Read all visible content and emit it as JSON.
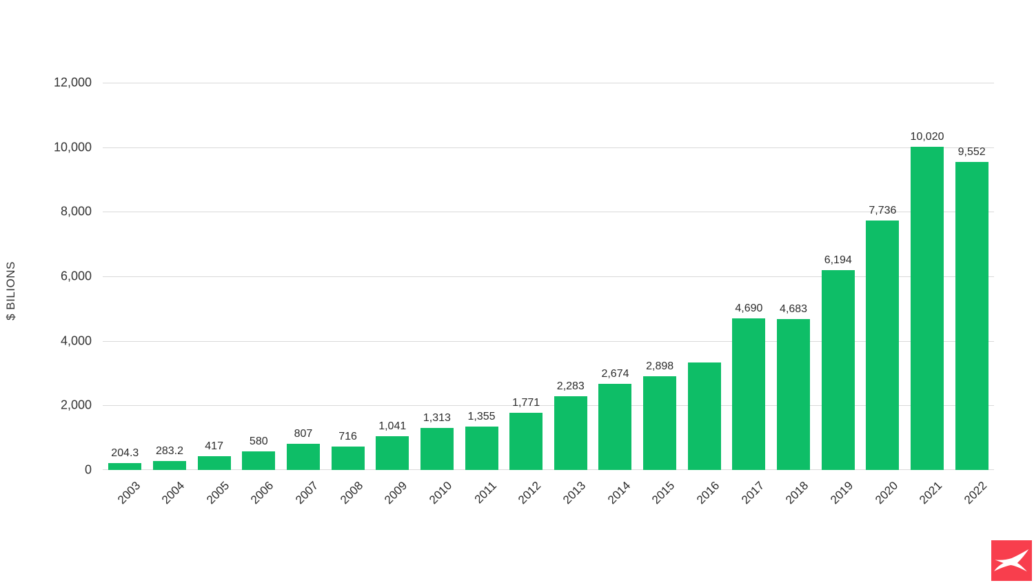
{
  "chart_data": {
    "type": "bar",
    "title": "",
    "ylabel": "$ BILIONS",
    "xlabel": "",
    "categories": [
      "2003",
      "2004",
      "2005",
      "2006",
      "2007",
      "2008",
      "2009",
      "2010",
      "2011",
      "2012",
      "2013",
      "2014",
      "2015",
      "2016",
      "2017",
      "2018",
      "2019",
      "2020",
      "2021",
      "2022"
    ],
    "values": [
      204.3,
      283.2,
      417,
      580,
      807,
      716,
      1041,
      1313,
      1355,
      1771,
      2283,
      2674,
      2898,
      3330,
      4690,
      4683,
      6194,
      7736,
      10020,
      9552
    ],
    "bar_labels": [
      "204.3",
      "283.2",
      "417",
      "580",
      "807",
      "716",
      "1,041",
      "1,313",
      "1,355",
      "1,771",
      "2,283",
      "2,674",
      "2,898",
      "",
      "4,690",
      "4,683",
      "6,194",
      "7,736",
      "10,020",
      "9,552"
    ],
    "ylim": [
      0,
      12000
    ],
    "yticks": [
      0,
      2000,
      4000,
      6000,
      8000,
      10000,
      12000
    ],
    "ytick_labels": [
      "0",
      "2,000",
      "4,000",
      "6,000",
      "8,000",
      "10,000",
      "12,000"
    ],
    "grid": true,
    "legend": "none",
    "colors": {
      "bar": "#0ebe67",
      "gridline": "#d9d9d9",
      "text": "#2f2f2f",
      "background": "#ffffff"
    }
  },
  "logo": {
    "name": "xtb-logo",
    "icon": "swallow-x-icon",
    "background_color": "#f83e4d",
    "glyph_color": "#ffffff"
  }
}
